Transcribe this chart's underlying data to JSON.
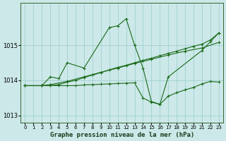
{
  "background_color": "#cce8e8",
  "grid_color": "#99cccc",
  "line_color": "#1a6b1a",
  "title": "Graphe pression niveau de la mer (hPa)",
  "xlim": [
    -0.5,
    23.5
  ],
  "ylim": [
    1012.8,
    1016.2
  ],
  "yticks": [
    1013,
    1014,
    1015
  ],
  "xticks": [
    0,
    1,
    2,
    3,
    4,
    5,
    6,
    7,
    8,
    9,
    10,
    11,
    12,
    13,
    14,
    15,
    16,
    17,
    18,
    19,
    20,
    21,
    22,
    23
  ],
  "line1_x": [
    0,
    2,
    3,
    4,
    5,
    7,
    10,
    11,
    12,
    13,
    14,
    15,
    16,
    17,
    21,
    22,
    23
  ],
  "line1_y": [
    1013.85,
    1013.85,
    1014.1,
    1014.05,
    1014.5,
    1014.35,
    1015.5,
    1015.55,
    1015.75,
    1015.0,
    1014.35,
    1013.4,
    1013.32,
    1014.1,
    1014.85,
    1015.1,
    1015.35
  ],
  "line2_x": [
    0,
    2,
    3,
    4,
    5,
    6,
    7,
    8,
    9,
    10,
    11,
    12,
    13,
    14,
    15,
    16,
    17,
    18,
    19,
    20,
    21,
    22,
    23
  ],
  "line2_y": [
    1013.85,
    1013.85,
    1013.85,
    1013.88,
    1013.95,
    1014.0,
    1014.08,
    1014.15,
    1014.22,
    1014.3,
    1014.37,
    1014.43,
    1014.5,
    1014.57,
    1014.63,
    1014.7,
    1014.77,
    1014.83,
    1014.9,
    1014.97,
    1015.03,
    1015.15,
    1015.35
  ],
  "line3_x": [
    0,
    2,
    3,
    5,
    7,
    9,
    11,
    13,
    15,
    17,
    19,
    21,
    23
  ],
  "line3_y": [
    1013.85,
    1013.85,
    1013.88,
    1013.97,
    1014.1,
    1014.23,
    1014.35,
    1014.48,
    1014.6,
    1014.72,
    1014.83,
    1014.92,
    1015.08
  ],
  "line4_x": [
    0,
    2,
    3,
    4,
    5,
    6,
    7,
    8,
    9,
    10,
    11,
    12,
    13,
    14,
    15,
    16,
    17,
    18,
    19,
    20,
    21,
    22,
    23
  ],
  "line4_y": [
    1013.85,
    1013.85,
    1013.85,
    1013.85,
    1013.85,
    1013.85,
    1013.87,
    1013.88,
    1013.89,
    1013.9,
    1013.91,
    1013.92,
    1013.93,
    1013.5,
    1013.38,
    1013.32,
    1013.55,
    1013.65,
    1013.73,
    1013.8,
    1013.9,
    1013.97,
    1013.95
  ]
}
